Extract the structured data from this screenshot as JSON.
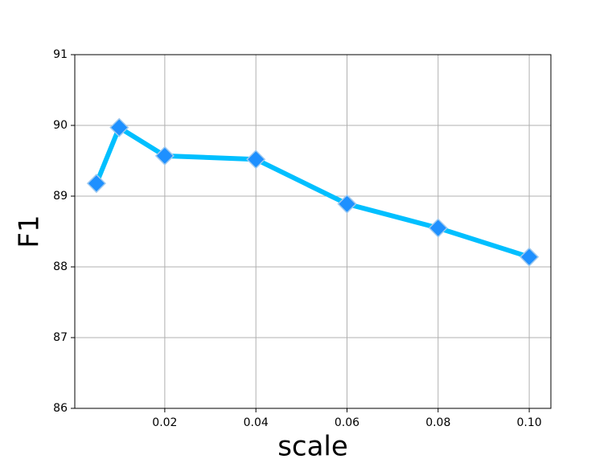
{
  "chart_data": {
    "type": "line",
    "xlabel": "scale",
    "ylabel": "F1",
    "x": [
      0.005,
      0.01,
      0.02,
      0.04,
      0.06,
      0.08,
      0.1
    ],
    "series": [
      {
        "values": [
          89.18,
          89.97,
          89.57,
          89.52,
          88.89,
          88.55,
          88.14
        ],
        "color": "#00bfff",
        "marker_color": "#1e90ff"
      }
    ],
    "xlim": [
      0.00025,
      0.10475
    ],
    "xticks": [
      0.02,
      0.04,
      0.06,
      0.08,
      {
        "value": 0.1,
        "label": "0.10"
      }
    ],
    "ylim": [
      86,
      91
    ],
    "yticks": [
      86,
      87,
      88,
      89,
      90,
      91
    ],
    "grid": true
  }
}
